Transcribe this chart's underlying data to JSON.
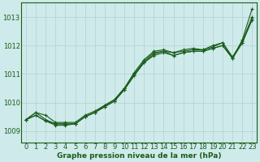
{
  "title": "Graphe pression niveau de la mer (hPa)",
  "background_color": "#ceeaea",
  "grid_color": "#b8d4d4",
  "line_color": "#1a5c1a",
  "xlim": [
    -0.5,
    23.5
  ],
  "ylim": [
    1008.6,
    1013.5
  ],
  "yticks": [
    1009,
    1010,
    1011,
    1012,
    1013
  ],
  "xticks": [
    0,
    1,
    2,
    3,
    4,
    5,
    6,
    7,
    8,
    9,
    10,
    11,
    12,
    13,
    14,
    15,
    16,
    17,
    18,
    19,
    20,
    21,
    22,
    23
  ],
  "series": [
    [
      1009.4,
      1009.65,
      1009.55,
      1009.3,
      1009.3,
      1009.3,
      1009.55,
      1009.7,
      1009.9,
      1010.1,
      1010.5,
      1011.05,
      1011.5,
      1011.8,
      1011.85,
      1011.75,
      1011.85,
      1011.9,
      1011.85,
      1012.0,
      1012.1,
      1011.55,
      1012.2,
      1013.3
    ],
    [
      1009.4,
      1009.65,
      1009.4,
      1009.25,
      1009.25,
      1009.25,
      1009.5,
      1009.65,
      1009.9,
      1010.1,
      1010.5,
      1011.0,
      1011.45,
      1011.75,
      1011.8,
      1011.75,
      1011.8,
      1011.85,
      1011.85,
      1011.95,
      1012.1,
      1011.6,
      1012.15,
      1013.0
    ],
    [
      1009.4,
      1009.55,
      1009.35,
      1009.25,
      1009.25,
      1009.25,
      1009.5,
      1009.65,
      1009.85,
      1010.05,
      1010.45,
      1010.95,
      1011.4,
      1011.7,
      1011.8,
      1011.65,
      1011.75,
      1011.8,
      1011.8,
      1011.9,
      1012.0,
      1011.55,
      1012.1,
      1012.95
    ],
    [
      1009.4,
      1009.55,
      1009.35,
      1009.2,
      1009.2,
      1009.25,
      1009.5,
      1009.65,
      1009.85,
      1010.05,
      1010.45,
      1010.95,
      1011.4,
      1011.65,
      1011.75,
      1011.65,
      1011.75,
      1011.8,
      1011.8,
      1011.9,
      1012.0,
      1011.55,
      1012.1,
      1012.9
    ]
  ],
  "marker_size": 2.5,
  "linewidth": 0.8,
  "tick_fontsize": 6,
  "title_fontsize": 6.5
}
